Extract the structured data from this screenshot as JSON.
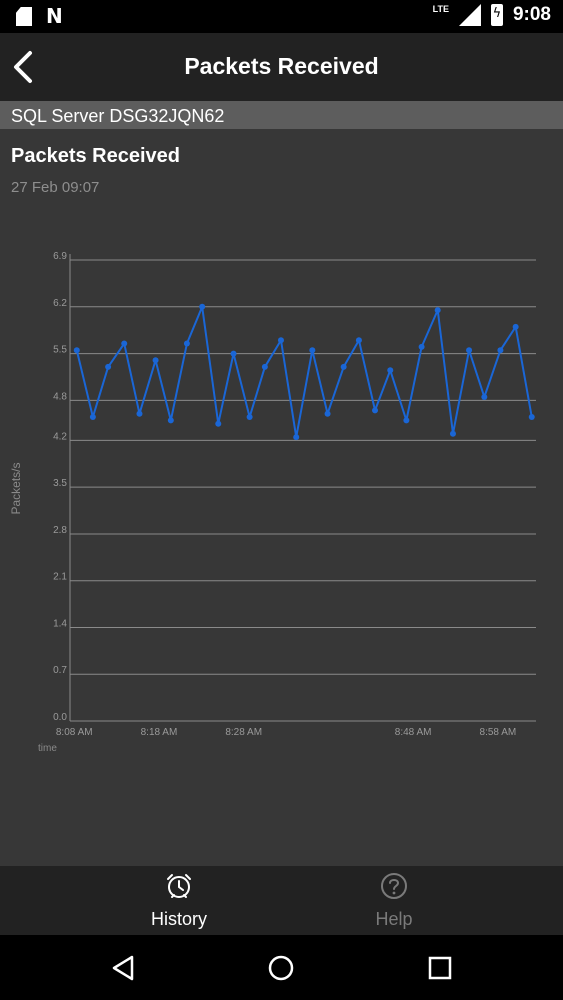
{
  "status_bar": {
    "network": "LTE",
    "time": "9:08",
    "icons": [
      "sd-card-icon",
      "n-notification-icon",
      "lte-signal-icon",
      "battery-charging-icon"
    ]
  },
  "app_bar": {
    "title": "Packets Received",
    "back_icon": "back-arrow-icon"
  },
  "server_bar": {
    "name": "SQL Server DSG32JQN62"
  },
  "metric": {
    "title": "Packets Received",
    "timestamp": "27 Feb 09:07"
  },
  "colors": {
    "line": "#1a66d6",
    "background": "#373737",
    "bar": "#222222",
    "server_bar": "#5d5d5d"
  },
  "chart_data": {
    "type": "line",
    "ylabel": "Packets/s",
    "xlabel": "time",
    "ylim": [
      0,
      7.2
    ],
    "y_ticks": [
      "0.0",
      "0.7",
      "1.4",
      "2.1",
      "2.8",
      "3.5",
      "4.2",
      "4.8",
      "5.5",
      "6.2",
      "6.9"
    ],
    "y_tick_values": [
      0,
      0.7,
      1.4,
      2.1,
      2.8,
      3.5,
      4.2,
      4.8,
      5.5,
      6.2,
      6.9
    ],
    "x_ticks": [
      "8:08 AM",
      "8:18 AM",
      "8:28 AM",
      "8:48 AM",
      "8:58 AM"
    ],
    "x_tick_minutes": [
      488,
      498,
      508,
      528,
      538
    ],
    "xlim_minutes": [
      487.5,
      542.5
    ],
    "grid": true,
    "series": [
      {
        "x_minutes": [
          488.3,
          490.2,
          492.0,
          493.9,
          495.7,
          497.6,
          499.4,
          501.3,
          503.1,
          505.0,
          506.8,
          508.7,
          510.5,
          512.4,
          514.2,
          516.1,
          517.9,
          519.8,
          521.6,
          523.5,
          525.3,
          527.2,
          529.0,
          530.9,
          532.7,
          534.6,
          536.4,
          538.3,
          540.1,
          542.0
        ],
        "values": [
          5.55,
          4.55,
          5.3,
          5.65,
          4.6,
          5.4,
          4.5,
          5.65,
          6.2,
          4.45,
          5.5,
          4.55,
          5.3,
          5.7,
          4.25,
          5.55,
          4.6,
          5.3,
          5.7,
          4.65,
          5.25,
          4.5,
          5.6,
          6.15,
          4.3,
          5.55,
          4.85,
          5.55,
          5.9,
          4.55
        ]
      }
    ]
  },
  "bottom_nav": {
    "items": [
      {
        "label": "History",
        "icon": "alarm-clock-icon",
        "active": true
      },
      {
        "label": "Help",
        "icon": "help-circle-icon",
        "active": false
      }
    ]
  },
  "system_nav": {
    "icons": [
      "nav-back-icon",
      "nav-home-icon",
      "nav-recents-icon"
    ]
  }
}
